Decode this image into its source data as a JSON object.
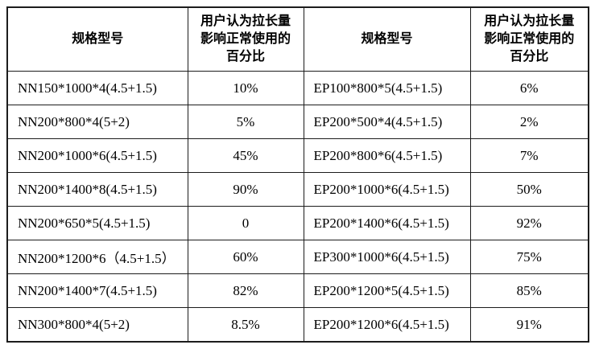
{
  "table": {
    "headers": {
      "spec_left": "规格型号",
      "pct_left": "用户认为拉长量影响正常使用的百分比",
      "spec_right": "规格型号",
      "pct_right": "用户认为拉长量影响正常使用的百分比",
      "pct_lines": [
        "用户认为拉长量",
        "影响正常使用的",
        "百分比"
      ]
    },
    "rows": [
      [
        "NN150*1000*4(4.5+1.5)",
        "10%",
        "EP100*800*5(4.5+1.5)",
        "6%"
      ],
      [
        "NN200*800*4(5+2)",
        "5%",
        "EP200*500*4(4.5+1.5)",
        "2%"
      ],
      [
        "NN200*1000*6(4.5+1.5)",
        "45%",
        "EP200*800*6(4.5+1.5)",
        "7%"
      ],
      [
        "NN200*1400*8(4.5+1.5)",
        "90%",
        "EP200*1000*6(4.5+1.5)",
        "50%"
      ],
      [
        "NN200*650*5(4.5+1.5)",
        "0",
        "EP200*1400*6(4.5+1.5)",
        "92%"
      ],
      [
        "NN200*1200*6（4.5+1.5）",
        "60%",
        "EP300*1000*6(4.5+1.5)",
        "75%"
      ],
      [
        "NN200*1400*7(4.5+1.5)",
        "82%",
        "EP200*1200*5(4.5+1.5)",
        "85%"
      ],
      [
        "NN300*800*4(5+2)",
        "8.5%",
        "EP200*1200*6(4.5+1.5)",
        "91%"
      ]
    ],
    "colors": {
      "border": "#1c1c1c",
      "background": "#ffffff",
      "text": "#000000"
    }
  }
}
